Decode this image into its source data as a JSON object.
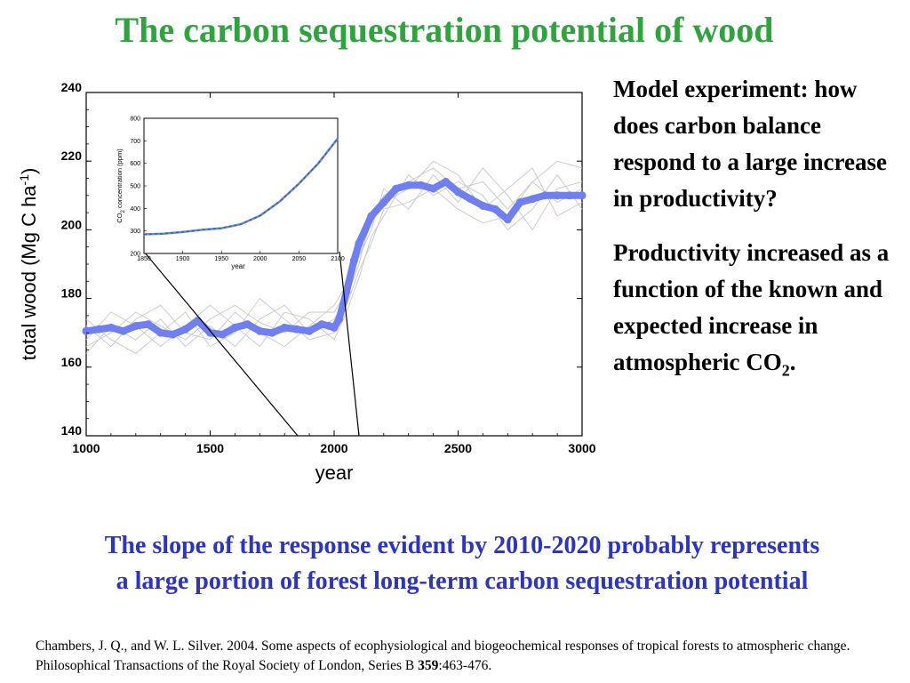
{
  "slide": {
    "title": "The carbon sequestration potential of wood",
    "side_p1": "Model experiment: how does carbon balance respond to a large increase in productivity?",
    "side_p2_main": "Productivity increased as a function of the known and expected increase in atmospheric CO",
    "side_p2_sub": "2",
    "side_p2_end": ".",
    "conclusion_line1": "The slope of the response evident by 2010-2020 probably represents",
    "conclusion_line2": "a large portion of forest long-term carbon sequestration potential",
    "citation_text": "Chambers, J. Q., and W. L. Silver. 2004. Some aspects of ecophysiological and biogeochemical responses of tropical forests to atmospheric change. Philosophical Transactions of the Royal Society of London, Series B ",
    "citation_volume": "359",
    "citation_pages": ":463-476."
  },
  "colors": {
    "title": "#2ea43c",
    "conclusion": "#2b34c6",
    "series_main": "#6f7ff0",
    "series_ensemble": "#c8c8c8",
    "inset_line": "#6f7ff0",
    "inset_dash": "#1a7a3a"
  },
  "chart_data": [
    {
      "type": "line",
      "xlabel": "year",
      "ylabel_main": "total wood (Mg C ha",
      "ylabel_sup": "-1",
      "ylabel_end": ")",
      "xlim": [
        1000,
        3000
      ],
      "ylim": [
        140,
        240
      ],
      "xticks": [
        "1000",
        "1500",
        "2000",
        "2500",
        "3000"
      ],
      "yticks": [
        "140",
        "160",
        "180",
        "200",
        "220",
        "240"
      ],
      "grid": false,
      "series": [
        {
          "x": [
            1000,
            1050,
            1100,
            1150,
            1200,
            1250,
            1300,
            1350,
            1400,
            1450,
            1500,
            1550,
            1600,
            1650,
            1700,
            1750,
            1800,
            1850,
            1900,
            1950,
            1980,
            2000,
            2020,
            2050,
            2080,
            2100,
            2150,
            2200,
            2250,
            2300,
            2350,
            2400,
            2450,
            2500,
            2550,
            2600,
            2650,
            2700,
            2750,
            2800,
            2850,
            2900,
            2950,
            3000
          ],
          "y": [
            170.5,
            171,
            171.5,
            170.5,
            172,
            172.5,
            170,
            169.5,
            171,
            173.5,
            170,
            169.5,
            171.5,
            172.5,
            170.5,
            170,
            171.5,
            171,
            170.5,
            172.5,
            172,
            171.5,
            174,
            182,
            191,
            196,
            204,
            208,
            212,
            213,
            213,
            212,
            214,
            211,
            209,
            207,
            206,
            203,
            208,
            209,
            210,
            210,
            210,
            210
          ]
        }
      ],
      "ensemble_note": "",
      "ensemble": [
        {
          "x": [
            1000,
            1100,
            1200,
            1300,
            1400,
            1500,
            1600,
            1700,
            1800,
            1900,
            2000,
            2050,
            2100,
            2150,
            2200,
            2300,
            2400,
            2500,
            2600,
            2700,
            2800,
            2900,
            3000
          ],
          "y": [
            166,
            170,
            176,
            172,
            168,
            174,
            178,
            173,
            170,
            176,
            176,
            182,
            192,
            202,
            210,
            214,
            218,
            212,
            214,
            206,
            214,
            220,
            218
          ]
        },
        {
          "x": [
            1000,
            1100,
            1200,
            1300,
            1400,
            1500,
            1600,
            1700,
            1800,
            1900,
            2000,
            2050,
            2100,
            2150,
            2200,
            2300,
            2400,
            2500,
            2600,
            2700,
            2800,
            2900,
            3000
          ],
          "y": [
            174,
            168,
            164,
            170,
            176,
            166,
            170,
            180,
            174,
            168,
            170,
            178,
            188,
            196,
            206,
            208,
            212,
            206,
            202,
            204,
            214,
            208,
            212
          ]
        },
        {
          "x": [
            1000,
            1100,
            1200,
            1300,
            1400,
            1500,
            1600,
            1700,
            1800,
            1900,
            2000,
            2050,
            2100,
            2150,
            2200,
            2300,
            2400,
            2500,
            2600,
            2700,
            2800,
            2900,
            3000
          ],
          "y": [
            168,
            176,
            172,
            166,
            172,
            178,
            172,
            166,
            176,
            174,
            168,
            176,
            186,
            198,
            204,
            216,
            210,
            214,
            210,
            200,
            206,
            216,
            206
          ]
        },
        {
          "x": [
            1000,
            1100,
            1200,
            1300,
            1400,
            1500,
            1600,
            1700,
            1800,
            1900,
            2000,
            2050,
            2100,
            2150,
            2200,
            2300,
            2400,
            2500,
            2600,
            2700,
            2800,
            2900,
            3000
          ],
          "y": [
            172,
            166,
            174,
            178,
            170,
            168,
            176,
            170,
            166,
            172,
            178,
            184,
            192,
            200,
            212,
            206,
            216,
            208,
            218,
            210,
            200,
            212,
            214
          ]
        },
        {
          "x": [
            1000,
            1100,
            1200,
            1300,
            1400,
            1500,
            1600,
            1700,
            1800,
            1900,
            2000,
            2050,
            2100,
            2150,
            2200,
            2300,
            2400,
            2500,
            2600,
            2700,
            2800,
            2900,
            3000
          ],
          "y": [
            164,
            172,
            168,
            174,
            166,
            172,
            166,
            174,
            178,
            170,
            174,
            180,
            190,
            204,
            208,
            212,
            220,
            216,
            206,
            212,
            218,
            204,
            208
          ]
        }
      ]
    },
    {
      "type": "line",
      "xlabel": "year",
      "ylabel_pre": "CO",
      "ylabel_sub": "2",
      "ylabel_post": " concentration (ppm)",
      "xlim": [
        1850,
        2100
      ],
      "ylim": [
        200,
        800
      ],
      "xticks": [
        "1850",
        "1900",
        "1950",
        "2000",
        "2050",
        "2100"
      ],
      "yticks": [
        "200",
        "300",
        "400",
        "500",
        "600",
        "700",
        "800"
      ],
      "series": [
        {
          "x": [
            1850,
            1875,
            1900,
            1925,
            1950,
            1975,
            2000,
            2025,
            2050,
            2075,
            2100
          ],
          "y": [
            285,
            288,
            295,
            305,
            312,
            330,
            368,
            430,
            510,
            600,
            710
          ]
        }
      ]
    }
  ]
}
